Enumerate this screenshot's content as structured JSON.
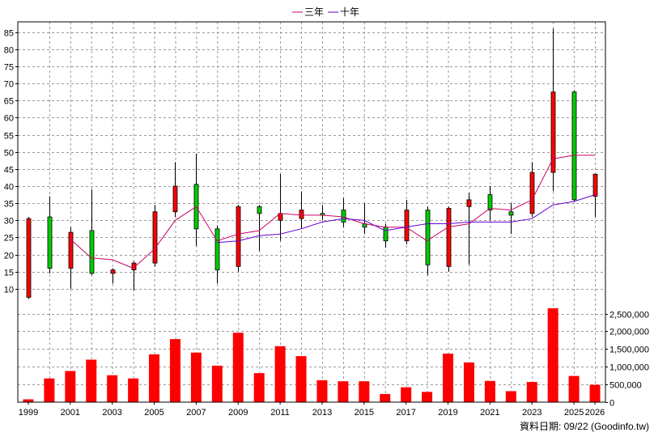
{
  "chart_data": {
    "type": "candlestick",
    "legend": {
      "placement": "top-center",
      "entries": [
        {
          "name": "三年",
          "color": "#cc0066"
        },
        {
          "name": "十年",
          "color": "#6600cc"
        }
      ]
    },
    "x_tick_labels": [
      "1999",
      "2001",
      "2003",
      "2005",
      "2007",
      "2009",
      "2011",
      "2013",
      "2015",
      "2017",
      "2019",
      "2021",
      "2023",
      "2025",
      "2026"
    ],
    "price_axis": {
      "ticks": [
        "10",
        "15",
        "20",
        "25",
        "30",
        "35",
        "40",
        "45",
        "50",
        "55",
        "60",
        "65",
        "70",
        "75",
        "80",
        "85"
      ],
      "range": [
        5,
        88
      ]
    },
    "volume_axis": {
      "ticks": [
        "0",
        "500,000",
        "1,000,000",
        "1,500,000",
        "2,000,000",
        "2,500,000"
      ],
      "range": [
        0,
        2650000
      ]
    },
    "grid": true,
    "footer": "資料日期: 09/22 (Goodinfo.tw)",
    "colors": {
      "up": "#ff0000",
      "down": "#00cc00",
      "wick": "#000000",
      "volume": "#ff0000"
    },
    "years": [
      1999,
      2000,
      2001,
      2002,
      2003,
      2004,
      2005,
      2006,
      2007,
      2008,
      2009,
      2010,
      2011,
      2012,
      2013,
      2014,
      2015,
      2016,
      2017,
      2018,
      2019,
      2020,
      2021,
      2022,
      2023,
      2024,
      2025,
      2026
    ],
    "candles": [
      {
        "open": 7.5,
        "high": 31,
        "low": 7,
        "close": 30.5
      },
      {
        "open": 31,
        "high": 37,
        "low": 14.5,
        "close": 16
      },
      {
        "open": 16,
        "high": 28,
        "low": 10,
        "close": 26.5
      },
      {
        "open": 27,
        "high": 39,
        "low": 14,
        "close": 14.5
      },
      {
        "open": 14.5,
        "high": 16,
        "low": 11.5,
        "close": 15.5
      },
      {
        "open": 15.5,
        "high": 18,
        "low": 9.5,
        "close": 17.5
      },
      {
        "open": 17.5,
        "high": 34.5,
        "low": 16.5,
        "close": 32.5
      },
      {
        "open": 32.5,
        "high": 47,
        "low": 31,
        "close": 40
      },
      {
        "open": 40.5,
        "high": 49.5,
        "low": 22.5,
        "close": 27.5
      },
      {
        "open": 27.5,
        "high": 28.5,
        "low": 11.5,
        "close": 15.5
      },
      {
        "open": 16.5,
        "high": 34.5,
        "low": 15,
        "close": 34
      },
      {
        "open": 34,
        "high": 34.5,
        "low": 21,
        "close": 32
      },
      {
        "open": 30,
        "high": 43.5,
        "low": 24,
        "close": 32
      },
      {
        "open": 30.5,
        "high": 38.5,
        "low": 27.5,
        "close": 33
      },
      {
        "open": 32,
        "high": 34.5,
        "low": 30,
        "close": 31.5
      },
      {
        "open": 33,
        "high": 36.5,
        "low": 28,
        "close": 29.5
      },
      {
        "open": 29,
        "high": 35,
        "low": 26,
        "close": 28
      },
      {
        "open": 28,
        "high": 29,
        "low": 22,
        "close": 24
      },
      {
        "open": 24,
        "high": 36,
        "low": 23,
        "close": 33
      },
      {
        "open": 33,
        "high": 34,
        "low": 14,
        "close": 17
      },
      {
        "open": 16.5,
        "high": 34,
        "low": 15,
        "close": 33.5
      },
      {
        "open": 34,
        "high": 38,
        "low": 17,
        "close": 36
      },
      {
        "open": 37.5,
        "high": 40,
        "low": 30,
        "close": 33
      },
      {
        "open": 32.5,
        "high": 35,
        "low": 26,
        "close": 31.5
      },
      {
        "open": 32,
        "high": 47,
        "low": 31,
        "close": 44
      },
      {
        "open": 44,
        "high": 86,
        "low": 38.5,
        "close": 67.5
      },
      {
        "open": 67.5,
        "high": 68,
        "low": 35.5,
        "close": 36
      },
      {
        "open": 37,
        "high": 43.5,
        "low": 31,
        "close": 43.5
      }
    ],
    "volumes": [
      80000,
      670000,
      880000,
      1200000,
      760000,
      670000,
      1350000,
      1780000,
      1400000,
      1030000,
      1960000,
      820000,
      1580000,
      1300000,
      620000,
      590000,
      590000,
      230000,
      420000,
      290000,
      1370000,
      1120000,
      600000,
      310000,
      570000,
      2650000,
      740000,
      490000
    ],
    "series": [
      {
        "name": "三年",
        "color": "#cc0066",
        "values": [
          null,
          null,
          24.5,
          19,
          18.5,
          16,
          21.5,
          30,
          34,
          24,
          26,
          27,
          32,
          31.5,
          31.5,
          31,
          29,
          28,
          28,
          24,
          28,
          29,
          33.5,
          33,
          36,
          48,
          49,
          49
        ]
      },
      {
        "name": "十年",
        "color": "#6600cc",
        "values": [
          null,
          null,
          null,
          null,
          null,
          null,
          null,
          null,
          null,
          23.5,
          24,
          25.5,
          26,
          27.5,
          29.5,
          30.5,
          30,
          27,
          28,
          29,
          29,
          29.5,
          29.5,
          29.5,
          30.5,
          34.5,
          35.5,
          37.5
        ]
      }
    ]
  }
}
